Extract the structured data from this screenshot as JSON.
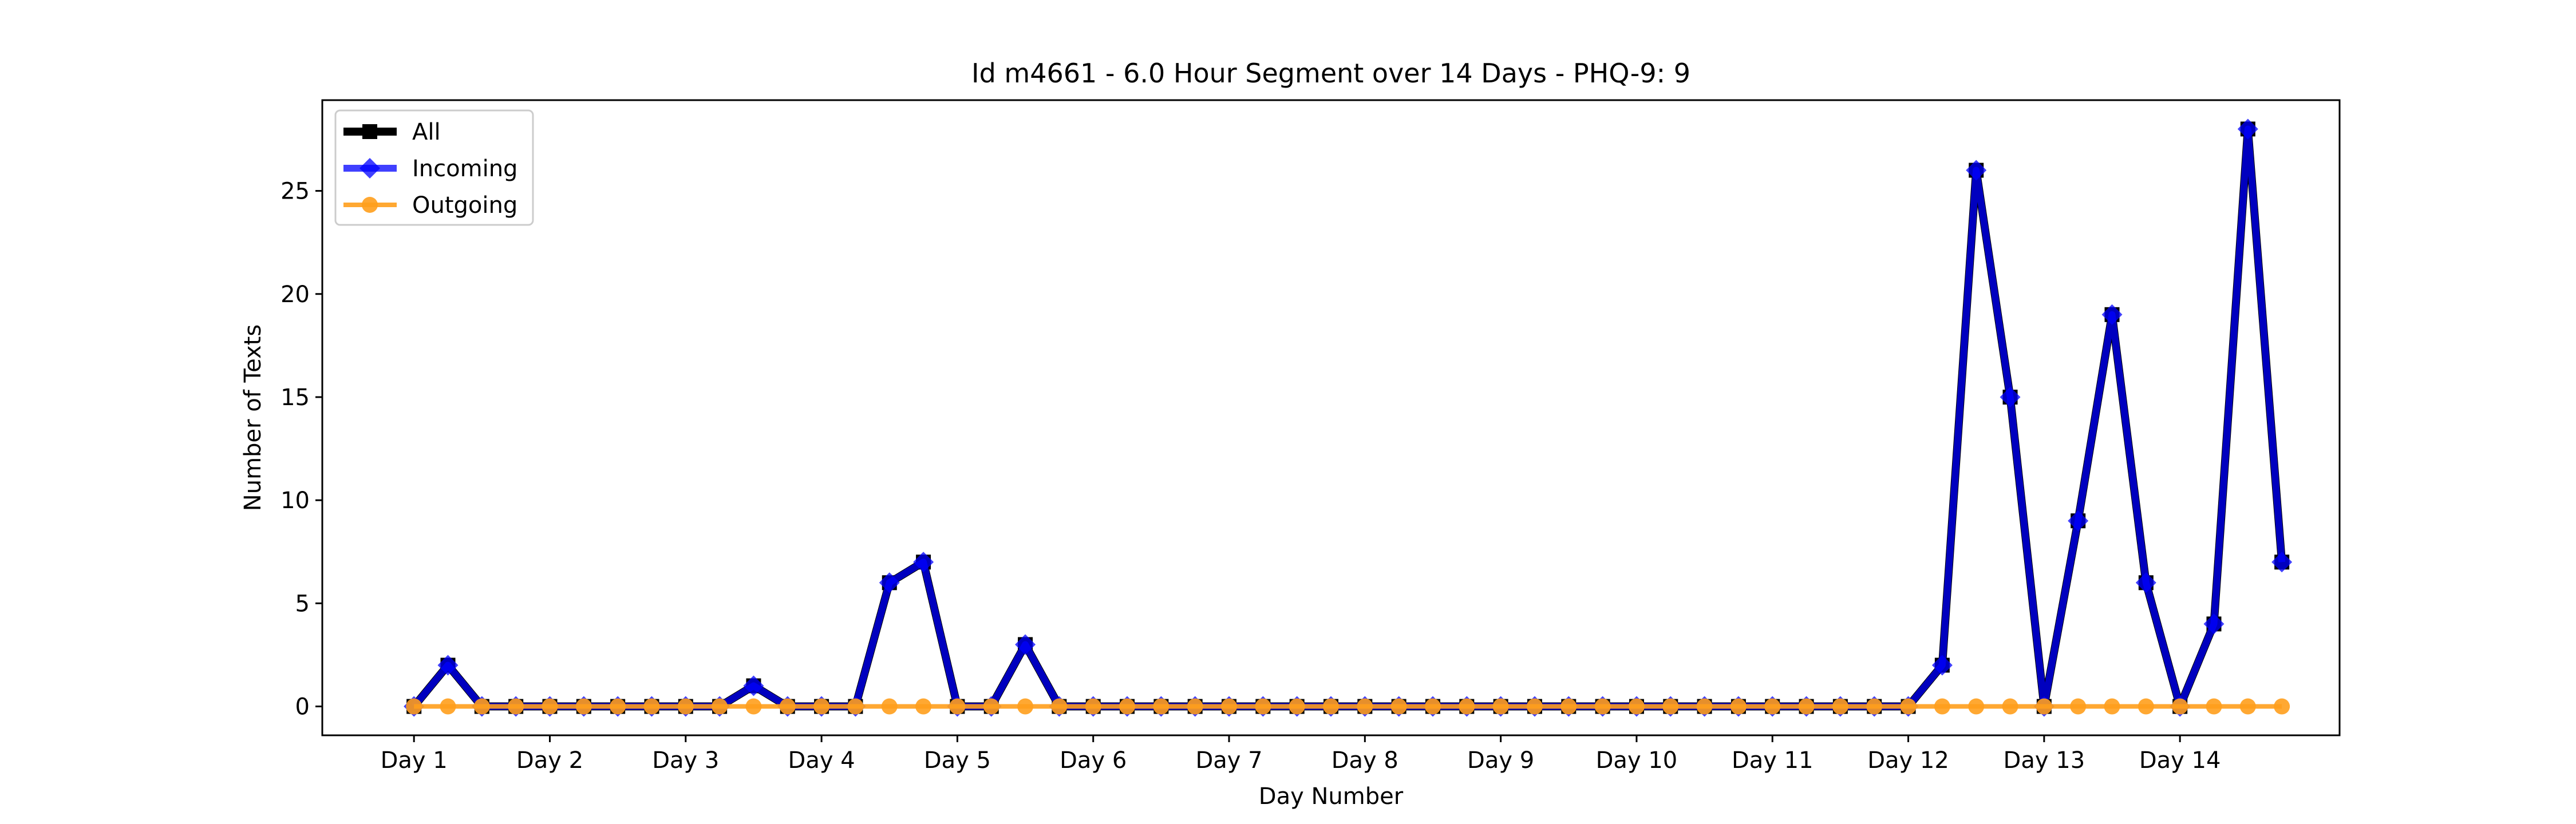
{
  "chart_data": {
    "type": "line",
    "title": "Id m4661 - 6.0 Hour Segment over 14 Days - PHQ-9: 9",
    "xlabel": "Day Number",
    "ylabel": "Number of Texts",
    "x_tick_labels": [
      "Day 1",
      "Day 2",
      "Day 3",
      "Day 4",
      "Day 5",
      "Day 6",
      "Day 7",
      "Day 8",
      "Day 9",
      "Day 10",
      "Day 11",
      "Day 12",
      "Day 13",
      "Day 14"
    ],
    "y_ticks": [
      0,
      5,
      10,
      15,
      20,
      25
    ],
    "xlim": [
      -2.7,
      56.7
    ],
    "ylim": [
      -1.4,
      29.4
    ],
    "grid": false,
    "legend_position": "upper-left",
    "series": [
      {
        "name": "All",
        "color": "#000000",
        "marker": "square",
        "values": [
          0,
          2,
          0,
          0,
          0,
          0,
          0,
          0,
          0,
          0,
          1,
          0,
          0,
          0,
          6,
          7,
          0,
          0,
          3,
          0,
          0,
          0,
          0,
          0,
          0,
          0,
          0,
          0,
          0,
          0,
          0,
          0,
          0,
          0,
          0,
          0,
          0,
          0,
          0,
          0,
          0,
          0,
          0,
          0,
          0,
          2,
          26,
          15,
          0,
          9,
          19,
          6,
          0,
          4,
          28,
          7
        ]
      },
      {
        "name": "Incoming",
        "color": "#0000ff",
        "marker": "diamond",
        "values": [
          0,
          2,
          0,
          0,
          0,
          0,
          0,
          0,
          0,
          0,
          1,
          0,
          0,
          0,
          6,
          7,
          0,
          0,
          3,
          0,
          0,
          0,
          0,
          0,
          0,
          0,
          0,
          0,
          0,
          0,
          0,
          0,
          0,
          0,
          0,
          0,
          0,
          0,
          0,
          0,
          0,
          0,
          0,
          0,
          0,
          2,
          26,
          15,
          0,
          9,
          19,
          6,
          0,
          4,
          28,
          7
        ]
      },
      {
        "name": "Outgoing",
        "color": "#ff9f1c",
        "marker": "circle",
        "values": [
          0,
          0,
          0,
          0,
          0,
          0,
          0,
          0,
          0,
          0,
          0,
          0,
          0,
          0,
          0,
          0,
          0,
          0,
          0,
          0,
          0,
          0,
          0,
          0,
          0,
          0,
          0,
          0,
          0,
          0,
          0,
          0,
          0,
          0,
          0,
          0,
          0,
          0,
          0,
          0,
          0,
          0,
          0,
          0,
          0,
          0,
          0,
          0,
          0,
          0,
          0,
          0,
          0,
          0,
          0,
          0
        ]
      }
    ]
  }
}
